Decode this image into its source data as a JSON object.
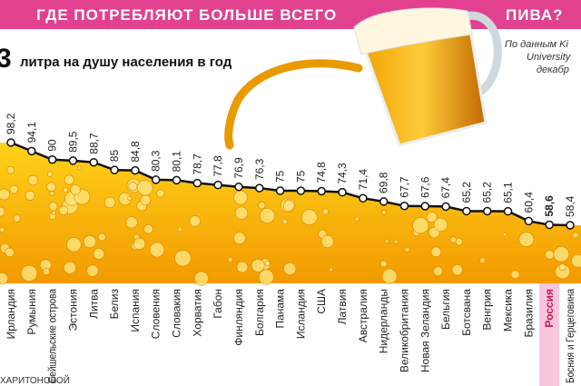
{
  "chart_data": {
    "type": "line",
    "title": "ГДЕ ПОТРЕБЛЯЮТ БОЛЬШЕ ВСЕГО",
    "title_end": "ПИВА?",
    "subtitle_number": "3",
    "subtitle": "литра на душу населения в год",
    "source": [
      "По данным Ki",
      "University",
      "декабр"
    ],
    "credit": "ХАРИТОНОВОЙ",
    "categories": [
      "Ирландия",
      "Румыния",
      "Сейшельские острова",
      "Эстония",
      "Литва",
      "Белиз",
      "Испания",
      "Словения",
      "Словакия",
      "Хорватия",
      "Габон",
      "Финляндия",
      "Болгария",
      "Панама",
      "Исландия",
      "США",
      "Латвия",
      "Австралия",
      "Нидерланды",
      "Великобритания",
      "Новая Зеландия",
      "Бельгия",
      "Ботсвана",
      "Венгрия",
      "Мексика",
      "Бразилия",
      "Россия",
      "Босния и Герцеговина"
    ],
    "values": [
      98.2,
      94.1,
      90,
      89.5,
      88.7,
      85,
      84.8,
      80.3,
      80.1,
      78.7,
      77.8,
      76.9,
      76.3,
      75,
      75,
      74.8,
      74.3,
      71.4,
      69.8,
      67.7,
      67.6,
      67.4,
      65.2,
      65.2,
      65.1,
      60.4,
      58.6,
      58.4
    ],
    "value_labels": [
      "98,2",
      "94,1",
      "90",
      "89,5",
      "88,7",
      "85",
      "84,8",
      "80,3",
      "80,1",
      "78,7",
      "77,8",
      "76,9",
      "76,3",
      "75",
      "75",
      "74,8",
      "74,3",
      "71,4",
      "69,8",
      "67,7",
      "67,6",
      "67,4",
      "65,2",
      "65,2",
      "65,1",
      "60,4",
      "58,6",
      "58,4"
    ],
    "highlight": "Россия",
    "color": "#111111",
    "area_color": "#f7b500",
    "highlight_color": "#f6c7dc",
    "title_color": "#e2418f"
  }
}
